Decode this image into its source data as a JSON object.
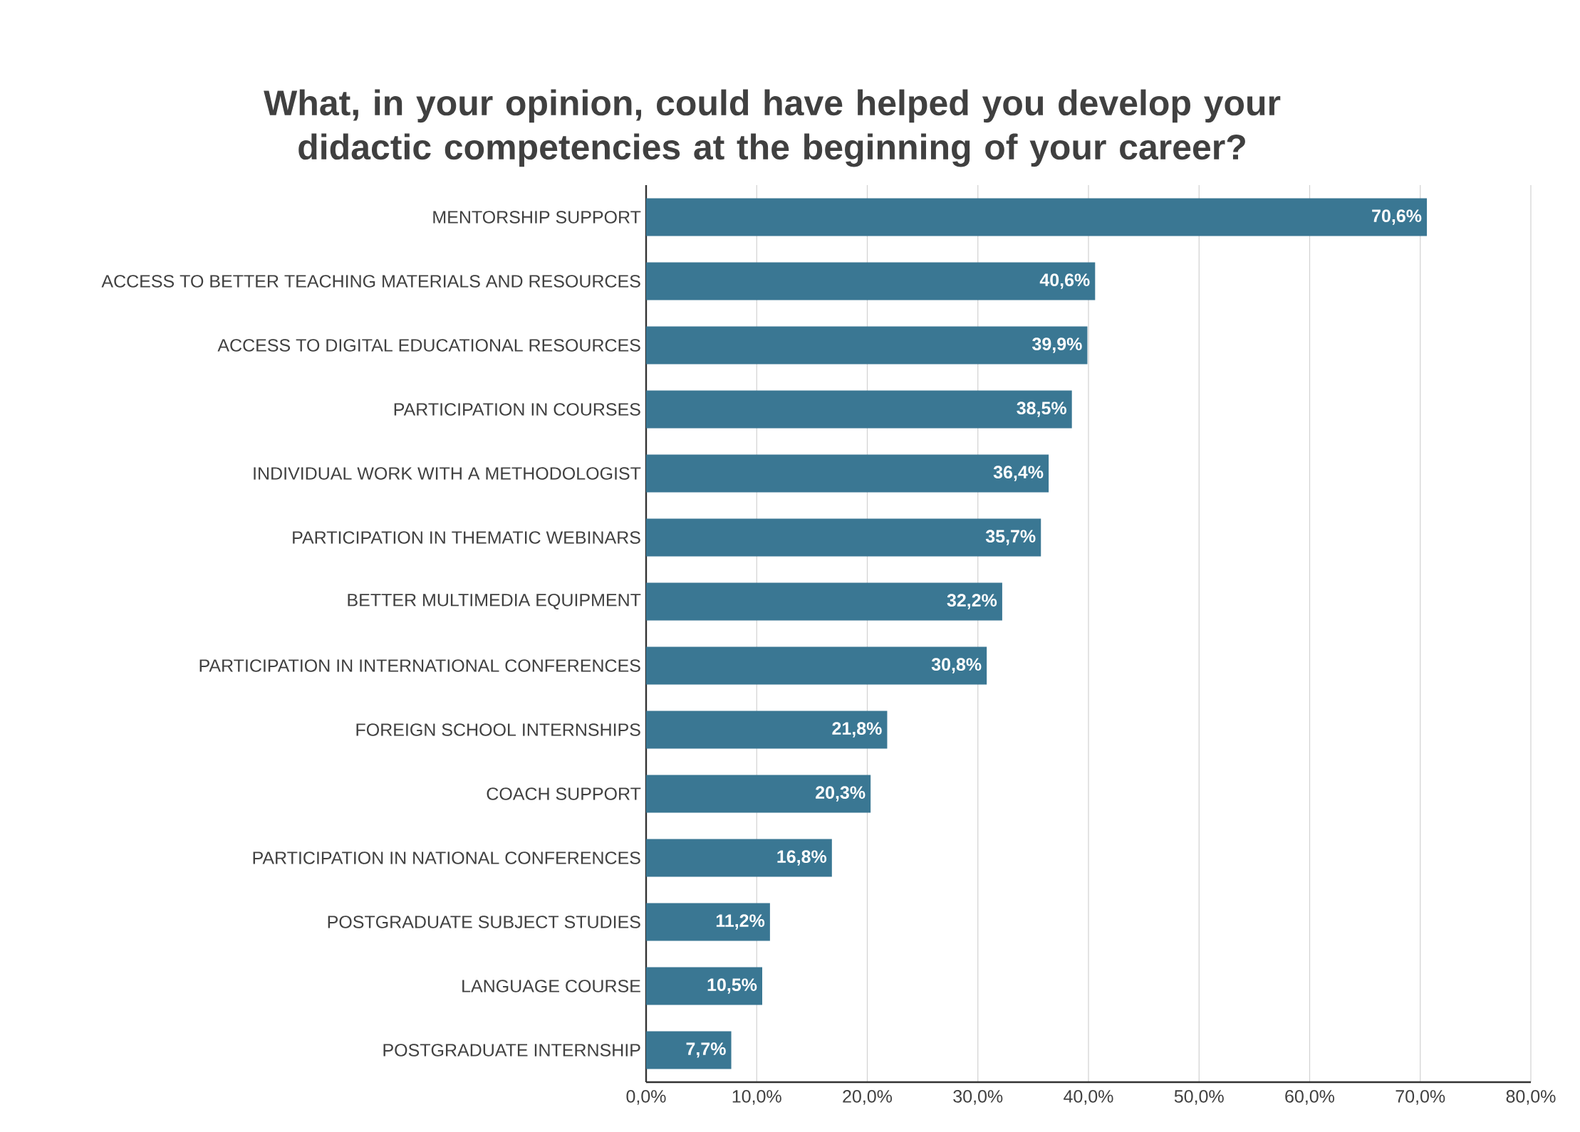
{
  "chart_data": {
    "type": "bar",
    "orientation": "horizontal",
    "title": "What, in your opinion, could have helped you develop your didactic competencies at the beginning of your career?",
    "categories": [
      "MENTORSHIP SUPPORT",
      "ACCESS TO BETTER TEACHING MATERIALS AND RESOURCES",
      "ACCESS TO DIGITAL EDUCATIONAL RESOURCES",
      "PARTICIPATION IN COURSES",
      "INDIVIDUAL WORK WITH A METHODOLOGIST",
      "PARTICIPATION IN THEMATIC WEBINARS",
      "BETTER MULTIMEDIA EQUIPMENT",
      "PARTICIPATION IN INTERNATIONAL CONFERENCES",
      "FOREIGN SCHOOL INTERNSHIPS",
      "COACH SUPPORT",
      "PARTICIPATION IN NATIONAL CONFERENCES",
      "POSTGRADUATE SUBJECT STUDIES",
      "LANGUAGE COURSE",
      "POSTGRADUATE INTERNSHIP"
    ],
    "values": [
      70.6,
      40.6,
      39.9,
      38.5,
      36.4,
      35.7,
      32.2,
      30.8,
      21.8,
      20.3,
      16.8,
      11.2,
      10.5,
      7.7
    ],
    "value_labels": [
      "70,6%",
      "40,6%",
      "39,9%",
      "38,5%",
      "36,4%",
      "35,7%",
      "32,2%",
      "30,8%",
      "21,8%",
      "20,3%",
      "16,8%",
      "11,2%",
      "10,5%",
      "7,7%"
    ],
    "color": "#3a7793",
    "xlim": [
      0,
      80
    ],
    "xticks": [
      {
        "value": 0,
        "label": "0,0%"
      },
      {
        "value": 10,
        "label": "10,0%"
      },
      {
        "value": 20,
        "label": "20,0%"
      },
      {
        "value": 30,
        "label": "30,0%"
      },
      {
        "value": 40,
        "label": "40,0%"
      },
      {
        "value": 50,
        "label": "50,0%"
      },
      {
        "value": 60,
        "label": "60,0%"
      },
      {
        "value": 70,
        "label": "70,0%"
      },
      {
        "value": 80,
        "label": "80,0%"
      }
    ],
    "grid": "x"
  }
}
